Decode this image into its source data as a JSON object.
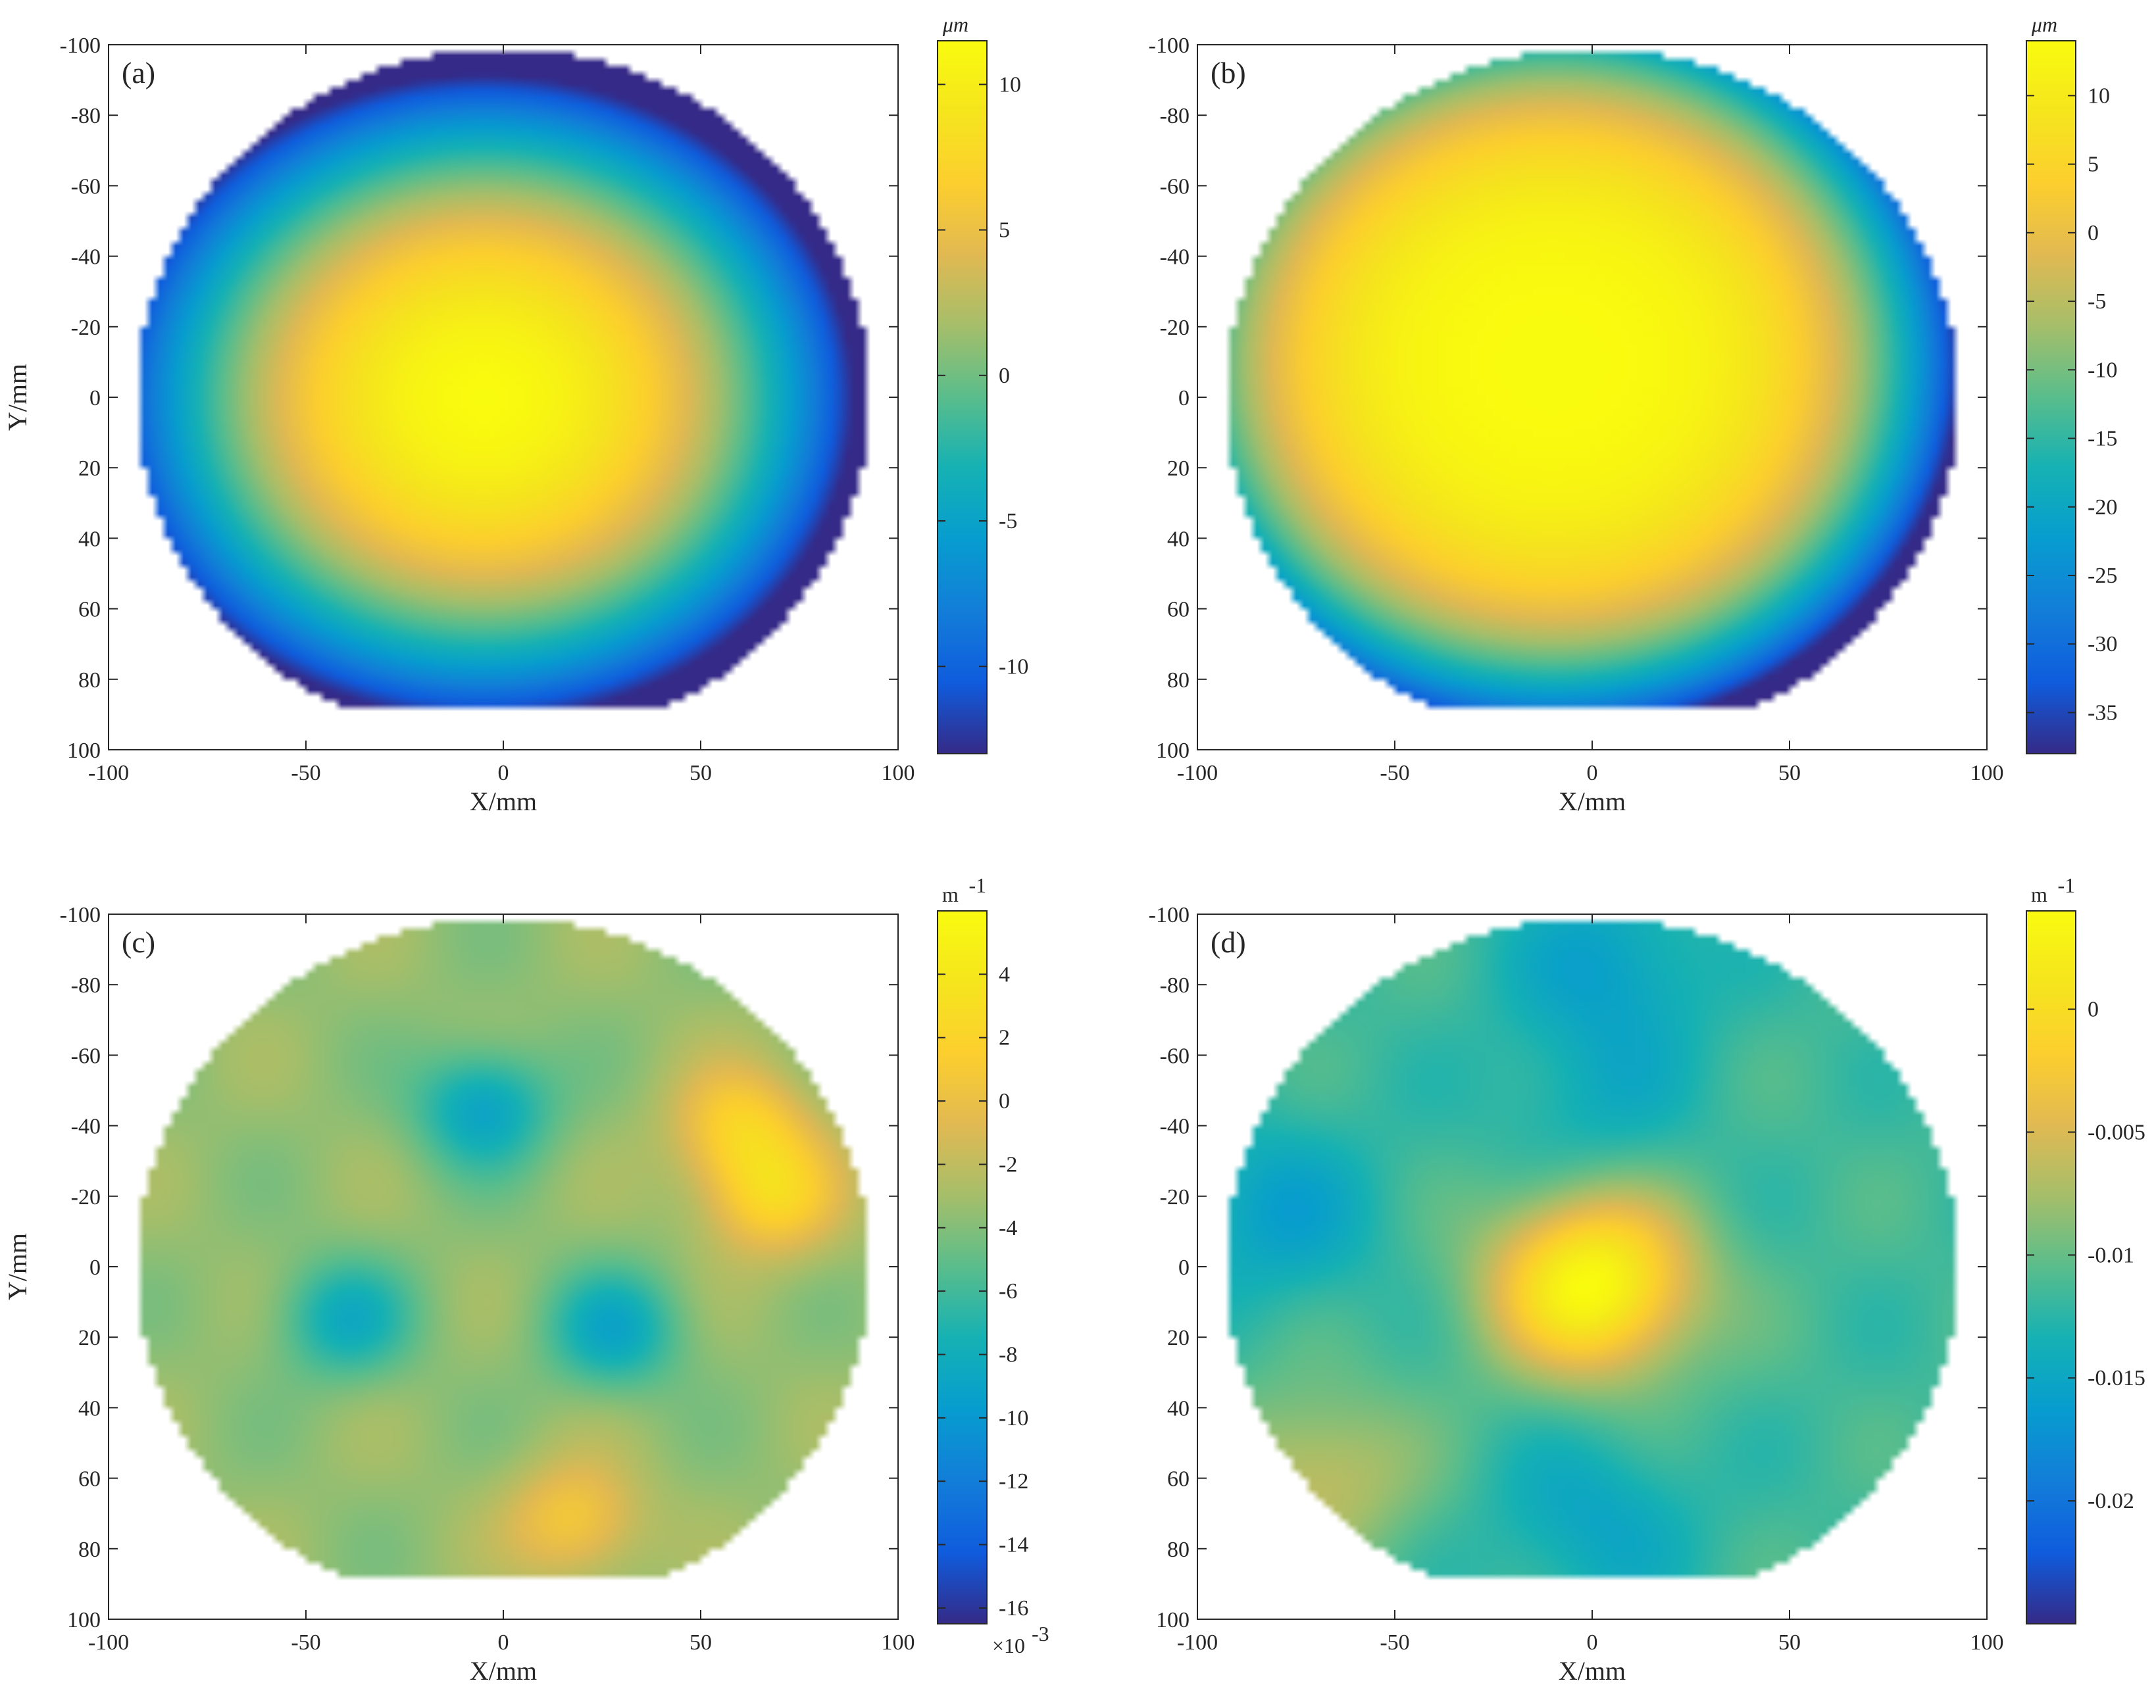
{
  "chart_data": [
    {
      "type": "heatmap",
      "panel_label": "(a)",
      "xlabel": "X/mm",
      "ylabel": "Y/mm",
      "xlim": [
        -100,
        100
      ],
      "ylim": [
        -100,
        100
      ],
      "y_direction": "reversed",
      "xticks": [
        -100,
        -50,
        0,
        50,
        100
      ],
      "xtick_labels": [
        "-100",
        "-50",
        "0",
        "50",
        "100"
      ],
      "yticks": [
        -100,
        -80,
        -60,
        -40,
        -20,
        0,
        20,
        40,
        60,
        80,
        100
      ],
      "ytick_labels": [
        "-100",
        "-80",
        "-60",
        "-40",
        "-20",
        "0",
        "20",
        "40",
        "60",
        "80",
        "100"
      ],
      "colorbar": {
        "unit": "μm",
        "exponent": "",
        "range": [
          -13,
          11.5
        ],
        "ticks": [
          -10,
          -5,
          0,
          5,
          10
        ],
        "tick_labels": [
          "-10",
          "-5",
          "0",
          "5",
          "10"
        ]
      },
      "field": {
        "peak_value": 11.5,
        "peak_at": [
          -5,
          0
        ],
        "edge_value": -12.5,
        "description_values": "radial surface shape, center high, edges low"
      }
    },
    {
      "type": "heatmap",
      "panel_label": "(b)",
      "xlabel": "X/mm",
      "ylabel": "",
      "xlim": [
        -100,
        100
      ],
      "ylim": [
        -100,
        100
      ],
      "y_direction": "reversed",
      "xticks": [
        -100,
        -50,
        0,
        50,
        100
      ],
      "xtick_labels": [
        "-100",
        "-50",
        "0",
        "50",
        "100"
      ],
      "yticks": [
        -100,
        -80,
        -60,
        -40,
        -20,
        0,
        20,
        40,
        60,
        80,
        100
      ],
      "ytick_labels": [
        "-100",
        "-80",
        "-60",
        "-40",
        "-20",
        "0",
        "20",
        "40",
        "60",
        "80",
        "100"
      ],
      "colorbar": {
        "unit": "μm",
        "exponent": "",
        "range": [
          -38,
          14
        ],
        "ticks": [
          -35,
          -30,
          -25,
          -20,
          -15,
          -10,
          -5,
          0,
          5,
          10
        ],
        "tick_labels": [
          "-35",
          "-30",
          "-25",
          "-20",
          "-15",
          "-10",
          "-5",
          "0",
          "5",
          "10"
        ]
      },
      "field": {
        "peak_value": 14,
        "peak_at": [
          -10,
          -10
        ],
        "edge_value": -30
      }
    },
    {
      "type": "heatmap",
      "panel_label": "(c)",
      "xlabel": "X/mm",
      "ylabel": "Y/mm",
      "xlim": [
        -100,
        100
      ],
      "ylim": [
        -100,
        100
      ],
      "y_direction": "reversed",
      "xticks": [
        -100,
        -50,
        0,
        50,
        100
      ],
      "xtick_labels": [
        "-100",
        "-50",
        "0",
        "50",
        "100"
      ],
      "yticks": [
        -100,
        -80,
        -60,
        -40,
        -20,
        0,
        20,
        40,
        60,
        80,
        100
      ],
      "ytick_labels": [
        "-100",
        "-80",
        "-60",
        "-40",
        "-20",
        "0",
        "20",
        "40",
        "60",
        "80",
        "100"
      ],
      "colorbar": {
        "unit": "m",
        "unit_superscript": "-1",
        "exponent_base": "×10",
        "exponent_power": "-3",
        "range": [
          -16.5,
          6
        ],
        "ticks": [
          -16,
          -14,
          -12,
          -10,
          -8,
          -6,
          -4,
          -2,
          0,
          2,
          4
        ],
        "tick_labels": [
          "-16",
          "-14",
          "-12",
          "-10",
          "-8",
          "-6",
          "-4",
          "-2",
          "0",
          "2",
          "4"
        ]
      },
      "field": {
        "base_value": -3.5,
        "features": [
          {
            "x": -5,
            "y": -45,
            "value": -9
          },
          {
            "x": -40,
            "y": 15,
            "value": -8
          },
          {
            "x": 28,
            "y": 18,
            "value": -8.5
          },
          {
            "x": 60,
            "y": -40,
            "value": 1.5
          },
          {
            "x": 68,
            "y": -20,
            "value": 2
          },
          {
            "x": 18,
            "y": 72,
            "value": 1
          }
        ]
      }
    },
    {
      "type": "heatmap",
      "panel_label": "(d)",
      "xlabel": "X/mm",
      "ylabel": "",
      "xlim": [
        -100,
        100
      ],
      "ylim": [
        -100,
        100
      ],
      "y_direction": "reversed",
      "xticks": [
        -100,
        -50,
        0,
        50,
        100
      ],
      "xtick_labels": [
        "-100",
        "-50",
        "0",
        "50",
        "100"
      ],
      "yticks": [
        -100,
        -80,
        -60,
        -40,
        -20,
        0,
        20,
        40,
        60,
        80,
        100
      ],
      "ytick_labels": [
        "-100",
        "-80",
        "-60",
        "-40",
        "-20",
        "0",
        "20",
        "40",
        "60",
        "80",
        "100"
      ],
      "colorbar": {
        "unit": "m",
        "unit_superscript": "-1",
        "exponent": "",
        "range": [
          -0.025,
          0.004
        ],
        "ticks": [
          -0.02,
          -0.015,
          -0.01,
          -0.005,
          0
        ],
        "tick_labels": [
          "-0.02",
          "-0.015",
          "-0.01",
          "-0.005",
          "0"
        ]
      },
      "field": {
        "base_value": -0.0115,
        "features": [
          {
            "x": 0,
            "y": 5,
            "value": 0.004
          },
          {
            "x": 5,
            "y": -85,
            "value": -0.0155
          },
          {
            "x": -80,
            "y": -15,
            "value": -0.0155
          },
          {
            "x": 0,
            "y": -45,
            "value": -0.014
          },
          {
            "x": 0,
            "y": 72,
            "value": -0.015
          },
          {
            "x": -70,
            "y": 60,
            "value": -0.006
          }
        ]
      }
    }
  ]
}
